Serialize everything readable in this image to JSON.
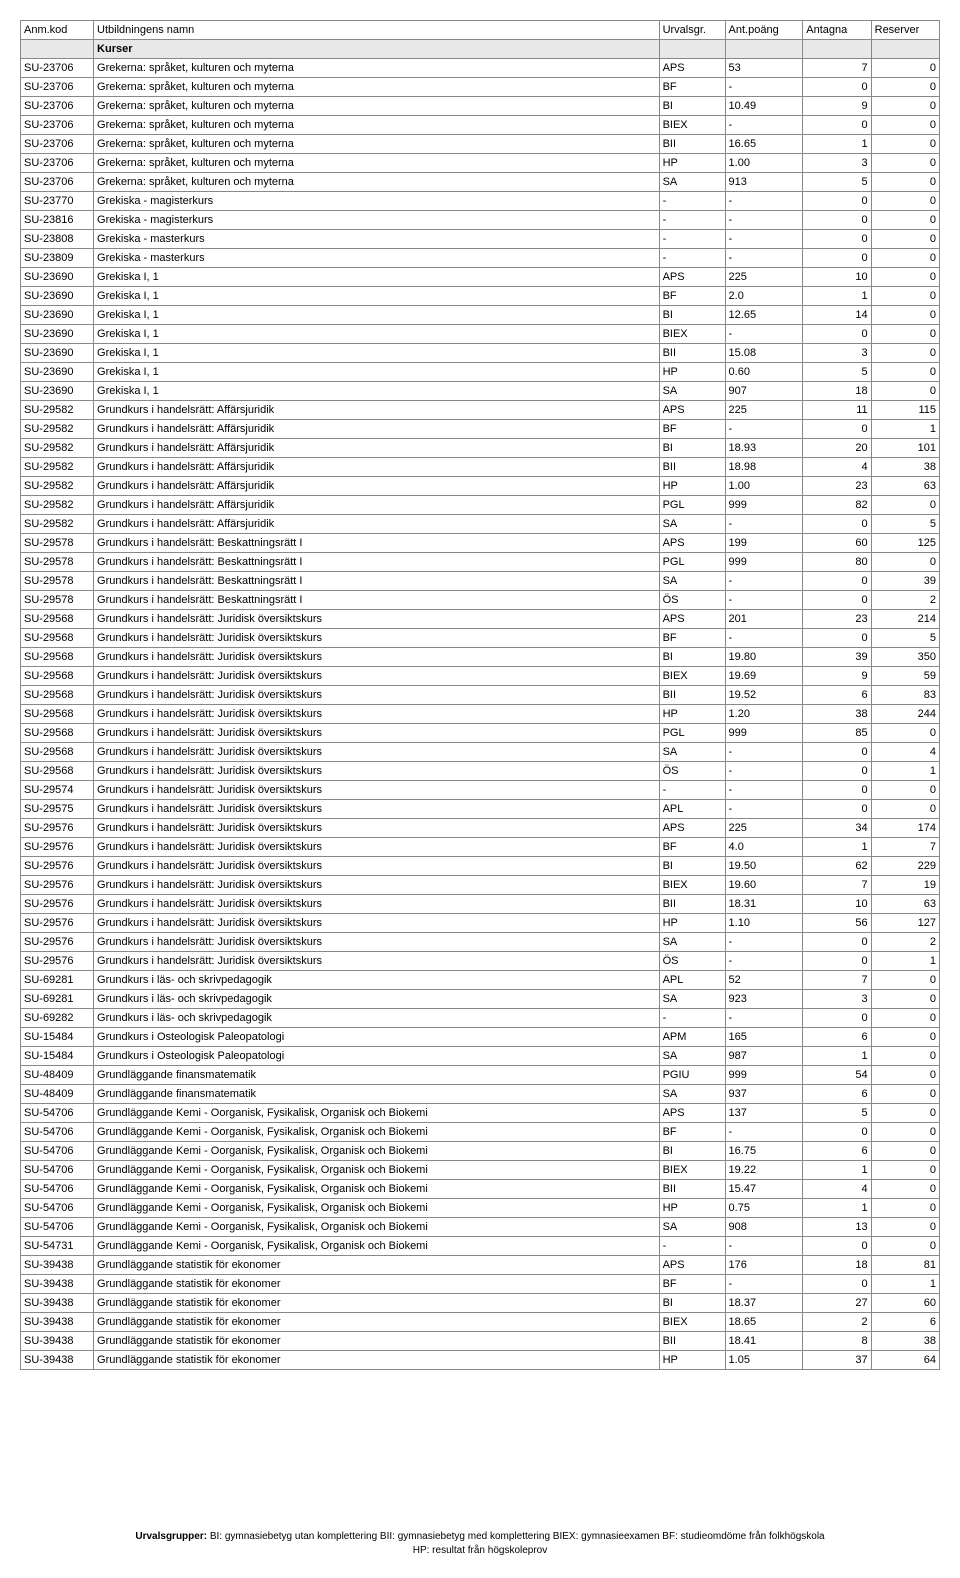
{
  "headers": {
    "code": "Anm.kod",
    "name": "Utbildningens namn",
    "group": "Urvalsgr.",
    "points": "Ant.poäng",
    "antagna": "Antagna",
    "reserver": "Reserver"
  },
  "section": "Kurser",
  "rows": [
    {
      "c": "SU-23706",
      "n": "Grekerna: språket, kulturen och myterna",
      "g": "APS",
      "p": "53",
      "a": "7",
      "r": "0"
    },
    {
      "c": "SU-23706",
      "n": "Grekerna: språket, kulturen och myterna",
      "g": "BF",
      "p": "-",
      "a": "0",
      "r": "0"
    },
    {
      "c": "SU-23706",
      "n": "Grekerna: språket, kulturen och myterna",
      "g": "BI",
      "p": "10.49",
      "a": "9",
      "r": "0"
    },
    {
      "c": "SU-23706",
      "n": "Grekerna: språket, kulturen och myterna",
      "g": "BIEX",
      "p": "-",
      "a": "0",
      "r": "0"
    },
    {
      "c": "SU-23706",
      "n": "Grekerna: språket, kulturen och myterna",
      "g": "BII",
      "p": "16.65",
      "a": "1",
      "r": "0"
    },
    {
      "c": "SU-23706",
      "n": "Grekerna: språket, kulturen och myterna",
      "g": "HP",
      "p": "1.00",
      "a": "3",
      "r": "0"
    },
    {
      "c": "SU-23706",
      "n": "Grekerna: språket, kulturen och myterna",
      "g": "SA",
      "p": "913",
      "a": "5",
      "r": "0"
    },
    {
      "c": "SU-23770",
      "n": "Grekiska - magisterkurs",
      "g": "-",
      "p": "-",
      "a": "0",
      "r": "0"
    },
    {
      "c": "SU-23816",
      "n": "Grekiska - magisterkurs",
      "g": "-",
      "p": "-",
      "a": "0",
      "r": "0"
    },
    {
      "c": "SU-23808",
      "n": "Grekiska - masterkurs",
      "g": "-",
      "p": "-",
      "a": "0",
      "r": "0"
    },
    {
      "c": "SU-23809",
      "n": "Grekiska - masterkurs",
      "g": "-",
      "p": "-",
      "a": "0",
      "r": "0"
    },
    {
      "c": "SU-23690",
      "n": "Grekiska I, 1",
      "g": "APS",
      "p": "225",
      "a": "10",
      "r": "0"
    },
    {
      "c": "SU-23690",
      "n": "Grekiska I, 1",
      "g": "BF",
      "p": "2.0",
      "a": "1",
      "r": "0"
    },
    {
      "c": "SU-23690",
      "n": "Grekiska I, 1",
      "g": "BI",
      "p": "12.65",
      "a": "14",
      "r": "0"
    },
    {
      "c": "SU-23690",
      "n": "Grekiska I, 1",
      "g": "BIEX",
      "p": "-",
      "a": "0",
      "r": "0"
    },
    {
      "c": "SU-23690",
      "n": "Grekiska I, 1",
      "g": "BII",
      "p": "15.08",
      "a": "3",
      "r": "0"
    },
    {
      "c": "SU-23690",
      "n": "Grekiska I, 1",
      "g": "HP",
      "p": "0.60",
      "a": "5",
      "r": "0"
    },
    {
      "c": "SU-23690",
      "n": "Grekiska I, 1",
      "g": "SA",
      "p": "907",
      "a": "18",
      "r": "0"
    },
    {
      "c": "SU-29582",
      "n": "Grundkurs i handelsrätt: Affärsjuridik",
      "g": "APS",
      "p": "225",
      "a": "11",
      "r": "115"
    },
    {
      "c": "SU-29582",
      "n": "Grundkurs i handelsrätt: Affärsjuridik",
      "g": "BF",
      "p": "-",
      "a": "0",
      "r": "1"
    },
    {
      "c": "SU-29582",
      "n": "Grundkurs i handelsrätt: Affärsjuridik",
      "g": "BI",
      "p": "18.93",
      "a": "20",
      "r": "101"
    },
    {
      "c": "SU-29582",
      "n": "Grundkurs i handelsrätt: Affärsjuridik",
      "g": "BII",
      "p": "18.98",
      "a": "4",
      "r": "38"
    },
    {
      "c": "SU-29582",
      "n": "Grundkurs i handelsrätt: Affärsjuridik",
      "g": "HP",
      "p": "1.00",
      "a": "23",
      "r": "63"
    },
    {
      "c": "SU-29582",
      "n": "Grundkurs i handelsrätt: Affärsjuridik",
      "g": "PGL",
      "p": "999",
      "a": "82",
      "r": "0"
    },
    {
      "c": "SU-29582",
      "n": "Grundkurs i handelsrätt: Affärsjuridik",
      "g": "SA",
      "p": "-",
      "a": "0",
      "r": "5"
    },
    {
      "c": "SU-29578",
      "n": "Grundkurs i handelsrätt: Beskattningsrätt I",
      "g": "APS",
      "p": "199",
      "a": "60",
      "r": "125"
    },
    {
      "c": "SU-29578",
      "n": "Grundkurs i handelsrätt: Beskattningsrätt I",
      "g": "PGL",
      "p": "999",
      "a": "80",
      "r": "0"
    },
    {
      "c": "SU-29578",
      "n": "Grundkurs i handelsrätt: Beskattningsrätt I",
      "g": "SA",
      "p": "-",
      "a": "0",
      "r": "39"
    },
    {
      "c": "SU-29578",
      "n": "Grundkurs i handelsrätt: Beskattningsrätt I",
      "g": "ÖS",
      "p": "-",
      "a": "0",
      "r": "2"
    },
    {
      "c": "SU-29568",
      "n": "Grundkurs i handelsrätt: Juridisk översiktskurs",
      "g": "APS",
      "p": "201",
      "a": "23",
      "r": "214"
    },
    {
      "c": "SU-29568",
      "n": "Grundkurs i handelsrätt: Juridisk översiktskurs",
      "g": "BF",
      "p": "-",
      "a": "0",
      "r": "5"
    },
    {
      "c": "SU-29568",
      "n": "Grundkurs i handelsrätt: Juridisk översiktskurs",
      "g": "BI",
      "p": "19.80",
      "a": "39",
      "r": "350"
    },
    {
      "c": "SU-29568",
      "n": "Grundkurs i handelsrätt: Juridisk översiktskurs",
      "g": "BIEX",
      "p": "19.69",
      "a": "9",
      "r": "59"
    },
    {
      "c": "SU-29568",
      "n": "Grundkurs i handelsrätt: Juridisk översiktskurs",
      "g": "BII",
      "p": "19.52",
      "a": "6",
      "r": "83"
    },
    {
      "c": "SU-29568",
      "n": "Grundkurs i handelsrätt: Juridisk översiktskurs",
      "g": "HP",
      "p": "1.20",
      "a": "38",
      "r": "244"
    },
    {
      "c": "SU-29568",
      "n": "Grundkurs i handelsrätt: Juridisk översiktskurs",
      "g": "PGL",
      "p": "999",
      "a": "85",
      "r": "0"
    },
    {
      "c": "SU-29568",
      "n": "Grundkurs i handelsrätt: Juridisk översiktskurs",
      "g": "SA",
      "p": "-",
      "a": "0",
      "r": "4"
    },
    {
      "c": "SU-29568",
      "n": "Grundkurs i handelsrätt: Juridisk översiktskurs",
      "g": "ÖS",
      "p": "-",
      "a": "0",
      "r": "1"
    },
    {
      "c": "SU-29574",
      "n": "Grundkurs i handelsrätt: Juridisk översiktskurs",
      "g": "-",
      "p": "-",
      "a": "0",
      "r": "0"
    },
    {
      "c": "SU-29575",
      "n": "Grundkurs i handelsrätt: Juridisk översiktskurs",
      "g": "APL",
      "p": "-",
      "a": "0",
      "r": "0"
    },
    {
      "c": "SU-29576",
      "n": "Grundkurs i handelsrätt: Juridisk översiktskurs",
      "g": "APS",
      "p": "225",
      "a": "34",
      "r": "174"
    },
    {
      "c": "SU-29576",
      "n": "Grundkurs i handelsrätt: Juridisk översiktskurs",
      "g": "BF",
      "p": "4.0",
      "a": "1",
      "r": "7"
    },
    {
      "c": "SU-29576",
      "n": "Grundkurs i handelsrätt: Juridisk översiktskurs",
      "g": "BI",
      "p": "19.50",
      "a": "62",
      "r": "229"
    },
    {
      "c": "SU-29576",
      "n": "Grundkurs i handelsrätt: Juridisk översiktskurs",
      "g": "BIEX",
      "p": "19.60",
      "a": "7",
      "r": "19"
    },
    {
      "c": "SU-29576",
      "n": "Grundkurs i handelsrätt: Juridisk översiktskurs",
      "g": "BII",
      "p": "18.31",
      "a": "10",
      "r": "63"
    },
    {
      "c": "SU-29576",
      "n": "Grundkurs i handelsrätt: Juridisk översiktskurs",
      "g": "HP",
      "p": "1.10",
      "a": "56",
      "r": "127"
    },
    {
      "c": "SU-29576",
      "n": "Grundkurs i handelsrätt: Juridisk översiktskurs",
      "g": "SA",
      "p": "-",
      "a": "0",
      "r": "2"
    },
    {
      "c": "SU-29576",
      "n": "Grundkurs i handelsrätt: Juridisk översiktskurs",
      "g": "ÖS",
      "p": "-",
      "a": "0",
      "r": "1"
    },
    {
      "c": "SU-69281",
      "n": "Grundkurs i läs- och skrivpedagogik",
      "g": "APL",
      "p": "52",
      "a": "7",
      "r": "0"
    },
    {
      "c": "SU-69281",
      "n": "Grundkurs i läs- och skrivpedagogik",
      "g": "SA",
      "p": "923",
      "a": "3",
      "r": "0"
    },
    {
      "c": "SU-69282",
      "n": "Grundkurs i läs- och skrivpedagogik",
      "g": "-",
      "p": "-",
      "a": "0",
      "r": "0"
    },
    {
      "c": "SU-15484",
      "n": "Grundkurs i Osteologisk Paleopatologi",
      "g": "APM",
      "p": "165",
      "a": "6",
      "r": "0"
    },
    {
      "c": "SU-15484",
      "n": "Grundkurs i Osteologisk Paleopatologi",
      "g": "SA",
      "p": "987",
      "a": "1",
      "r": "0"
    },
    {
      "c": "SU-48409",
      "n": "Grundläggande finansmatematik",
      "g": "PGIU",
      "p": "999",
      "a": "54",
      "r": "0"
    },
    {
      "c": "SU-48409",
      "n": "Grundläggande finansmatematik",
      "g": "SA",
      "p": "937",
      "a": "6",
      "r": "0"
    },
    {
      "c": "SU-54706",
      "n": "Grundläggande Kemi - Oorganisk, Fysikalisk, Organisk och Biokemi",
      "g": "APS",
      "p": "137",
      "a": "5",
      "r": "0"
    },
    {
      "c": "SU-54706",
      "n": "Grundläggande Kemi - Oorganisk, Fysikalisk, Organisk och Biokemi",
      "g": "BF",
      "p": "-",
      "a": "0",
      "r": "0"
    },
    {
      "c": "SU-54706",
      "n": "Grundläggande Kemi - Oorganisk, Fysikalisk, Organisk och Biokemi",
      "g": "BI",
      "p": "16.75",
      "a": "6",
      "r": "0"
    },
    {
      "c": "SU-54706",
      "n": "Grundläggande Kemi - Oorganisk, Fysikalisk, Organisk och Biokemi",
      "g": "BIEX",
      "p": "19.22",
      "a": "1",
      "r": "0"
    },
    {
      "c": "SU-54706",
      "n": "Grundläggande Kemi - Oorganisk, Fysikalisk, Organisk och Biokemi",
      "g": "BII",
      "p": "15.47",
      "a": "4",
      "r": "0"
    },
    {
      "c": "SU-54706",
      "n": "Grundläggande Kemi - Oorganisk, Fysikalisk, Organisk och Biokemi",
      "g": "HP",
      "p": "0.75",
      "a": "1",
      "r": "0"
    },
    {
      "c": "SU-54706",
      "n": "Grundläggande Kemi - Oorganisk, Fysikalisk, Organisk och Biokemi",
      "g": "SA",
      "p": "908",
      "a": "13",
      "r": "0"
    },
    {
      "c": "SU-54731",
      "n": "Grundläggande Kemi - Oorganisk, Fysikalisk, Organisk och Biokemi",
      "g": "-",
      "p": "-",
      "a": "0",
      "r": "0"
    },
    {
      "c": "SU-39438",
      "n": "Grundläggande statistik för ekonomer",
      "g": "APS",
      "p": "176",
      "a": "18",
      "r": "81"
    },
    {
      "c": "SU-39438",
      "n": "Grundläggande statistik för ekonomer",
      "g": "BF",
      "p": "-",
      "a": "0",
      "r": "1"
    },
    {
      "c": "SU-39438",
      "n": "Grundläggande statistik för ekonomer",
      "g": "BI",
      "p": "18.37",
      "a": "27",
      "r": "60"
    },
    {
      "c": "SU-39438",
      "n": "Grundläggande statistik för ekonomer",
      "g": "BIEX",
      "p": "18.65",
      "a": "2",
      "r": "6"
    },
    {
      "c": "SU-39438",
      "n": "Grundläggande statistik för ekonomer",
      "g": "BII",
      "p": "18.41",
      "a": "8",
      "r": "38"
    },
    {
      "c": "SU-39438",
      "n": "Grundläggande statistik för ekonomer",
      "g": "HP",
      "p": "1.05",
      "a": "37",
      "r": "64"
    }
  ],
  "footer": {
    "line1": "Urvalsgrupper:  BI: gymnasiebetyg utan komplettering  BII: gymnasiebetyg med komplettering BIEX: gymnasieexamen BF: studieomdöme från folkhögskola",
    "line2": "HP: resultat från högskoleprov"
  }
}
